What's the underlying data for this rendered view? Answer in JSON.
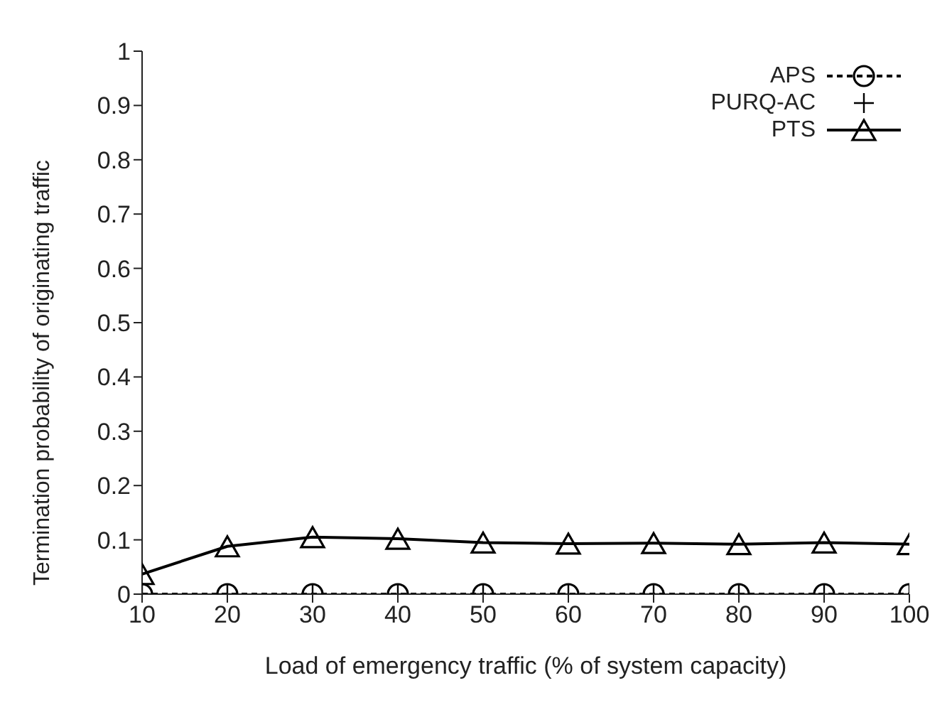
{
  "chart_data": {
    "type": "line",
    "xlabel": "Load of emergency traffic (% of system capacity)",
    "ylabel": "Termination probability of originating traffic",
    "x": [
      10,
      20,
      30,
      40,
      50,
      60,
      70,
      80,
      90,
      100
    ],
    "xlim": [
      10,
      100
    ],
    "xticks": [
      10,
      20,
      30,
      40,
      50,
      60,
      70,
      80,
      90,
      100
    ],
    "ylim": [
      0,
      1
    ],
    "yticks": [
      0,
      0.1,
      0.2,
      0.3,
      0.4,
      0.5,
      0.6,
      0.7,
      0.8,
      0.9,
      1
    ],
    "grid": false,
    "legend": "top right",
    "series": [
      {
        "name": "APS",
        "color": "#000000",
        "marker": "circle",
        "line_style": "dashed",
        "values": [
          0,
          0,
          0,
          0,
          0,
          0,
          0,
          0,
          0,
          0
        ]
      },
      {
        "name": "PURQ-AC",
        "type": "scatter",
        "color": "#000000",
        "marker": "cross",
        "values": [
          0,
          0,
          0,
          0,
          0,
          0,
          0,
          0,
          0,
          0
        ]
      },
      {
        "name": "PTS",
        "color": "#000000",
        "marker": "triangle",
        "line_style": "solid",
        "values": [
          0.037,
          0.088,
          0.105,
          0.102,
          0.095,
          0.093,
          0.094,
          0.092,
          0.095,
          0.092
        ]
      }
    ]
  }
}
